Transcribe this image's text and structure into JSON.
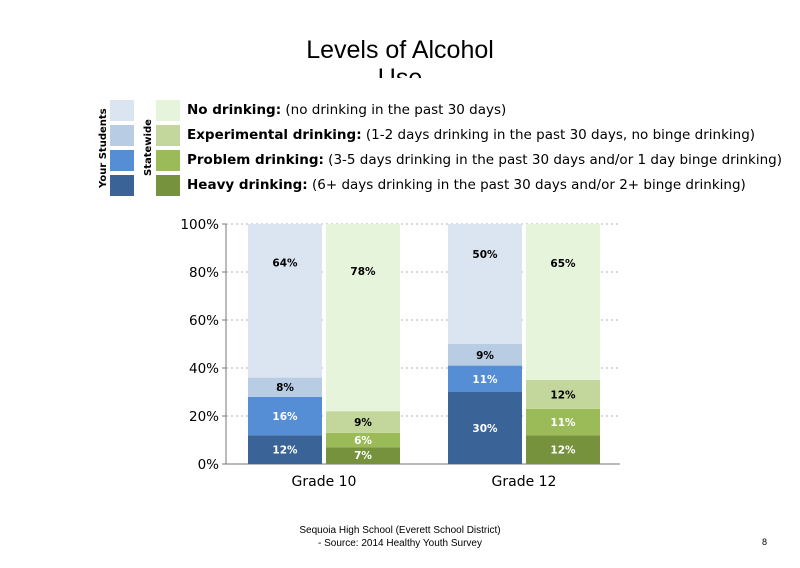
{
  "title": "Levels of Alcohol Use",
  "legend": {
    "group_labels": {
      "your_students": "Your Students",
      "statewide": "Statewide"
    },
    "items": [
      {
        "bold": "No drinking:",
        "desc": " (no drinking in the past 30 days)",
        "color_students": "#dbe5f1",
        "color_state": "#e6f4dc"
      },
      {
        "bold": "Experimental drinking:",
        "desc": " (1-2 days drinking in the past 30 days, no binge drinking)",
        "color_students": "#b8cce4",
        "color_state": "#c3d69b"
      },
      {
        "bold": "Problem drinking:",
        "desc": " (3-5 days drinking in the past 30 days and/or 1 day binge drinking)",
        "color_students": "#558ed5",
        "color_state": "#9bbb59"
      },
      {
        "bold": "Heavy drinking:",
        "desc": " (6+ days drinking in the past 30 days and/or 2+ binge drinking)",
        "color_students": "#3a6497",
        "color_state": "#76923c"
      }
    ]
  },
  "chart_data": {
    "type": "bar",
    "stacked": true,
    "categories": [
      "Grade 10",
      "Grade 12"
    ],
    "ylim": [
      0,
      100
    ],
    "yticks": [
      "0%",
      "20%",
      "40%",
      "60%",
      "80%",
      "100%"
    ],
    "grid": true,
    "bars": [
      {
        "category": "Grade 10",
        "group": "Your Students",
        "segments": [
          12,
          16,
          8,
          64
        ],
        "labels": [
          "12%",
          "16%",
          "8%",
          "64%"
        ]
      },
      {
        "category": "Grade 10",
        "group": "Statewide",
        "segments": [
          7,
          6,
          9,
          78
        ],
        "labels": [
          "7%",
          "6%",
          "9%",
          "78%"
        ]
      },
      {
        "category": "Grade 12",
        "group": "Your Students",
        "segments": [
          30,
          11,
          9,
          50
        ],
        "labels": [
          "30%",
          "11%",
          "9%",
          "50%"
        ]
      },
      {
        "category": "Grade 12",
        "group": "Statewide",
        "segments": [
          12,
          11,
          12,
          65
        ],
        "labels": [
          "12%",
          "11%",
          "12%",
          "65%"
        ]
      }
    ],
    "colors": {
      "Your Students": [
        "#3a6497",
        "#558ed5",
        "#b8cce4",
        "#dbe5f1"
      ],
      "Statewide": [
        "#76923c",
        "#9bbb59",
        "#c3d69b",
        "#e6f4dc"
      ]
    }
  },
  "footer": {
    "line1": "Sequoia High School (Everett School District)",
    "line2": "- Source: 2014 Healthy  Youth Survey"
  },
  "page_number": "8"
}
